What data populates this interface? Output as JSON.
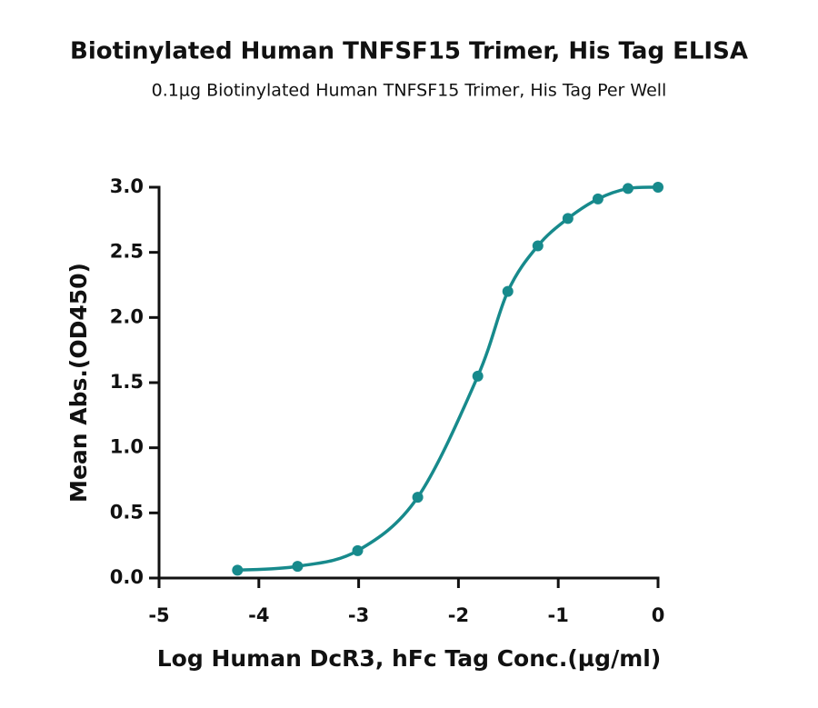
{
  "chart_data": {
    "type": "line",
    "title": "Biotinylated Human TNFSF15 Trimer, His Tag ELISA",
    "subtitle": "0.1µg Biotinylated Human TNFSF15 Trimer, His Tag Per Well",
    "x_label": "Log Human DcR3, hFc Tag Conc.(µg/ml)",
    "y_label": "Mean Abs.(OD450)",
    "x": [
      -4.214,
      -3.612,
      -3.01,
      -2.408,
      -1.806,
      -1.505,
      -1.204,
      -0.903,
      -0.602,
      -0.301,
      0
    ],
    "series": [
      {
        "color": "#178a8c",
        "values": [
          0.06,
          0.09,
          0.21,
          0.62,
          1.55,
          2.2,
          2.55,
          2.76,
          2.91,
          2.99,
          3.0
        ]
      }
    ],
    "xlim": [
      -5,
      0
    ],
    "xticks": [
      -5,
      -4,
      -3,
      -2,
      -1,
      0
    ],
    "ylim": [
      0,
      3
    ],
    "yticks": [
      {
        "value": 0,
        "label": "0.0"
      },
      0.5,
      {
        "value": 1,
        "label": "1.0"
      },
      1.5,
      {
        "value": 2,
        "label": "2.0"
      },
      2.5,
      {
        "value": 3,
        "label": "3.0"
      }
    ],
    "grid": false
  }
}
